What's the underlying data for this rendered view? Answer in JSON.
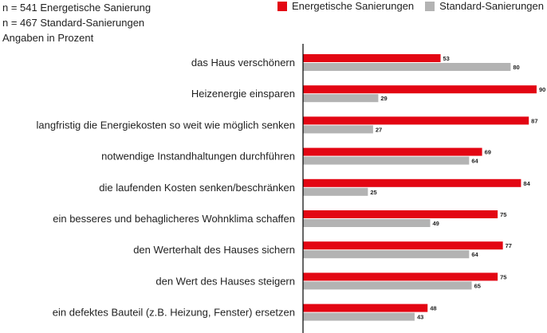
{
  "notes": {
    "line1": "n = 541 Energetische Sanierung",
    "line2": "n = 467 Standard-Sanierungen",
    "line3": "Angaben in Prozent"
  },
  "legend": [
    {
      "label": "Energetische Sanierungen",
      "color": "#e30613"
    },
    {
      "label": "Standard-Sanierungen",
      "color": "#b3b3b3"
    }
  ],
  "chart_data": {
    "type": "bar",
    "orientation": "horizontal",
    "categories": [
      "das Haus verschönern",
      "Heizenergie einsparen",
      "langfristig die Energiekosten so weit wie möglich senken",
      "notwendige Instandhaltungen durchführen",
      "die laufenden Kosten senken/beschränken",
      "ein besseres und behaglicheres Wohnklima schaffen",
      "den Werterhalt des Hauses sichern",
      "den Wert des Hauses steigern",
      "ein defektes Bauteil (z.B. Heizung, Fenster) ersetzen"
    ],
    "series": [
      {
        "name": "Energetische Sanierungen",
        "color": "#e30613",
        "values": [
          53,
          90,
          87,
          69,
          84,
          75,
          77,
          75,
          48
        ]
      },
      {
        "name": "Standard-Sanierungen",
        "color": "#b3b3b3",
        "values": [
          80,
          29,
          27,
          64,
          25,
          49,
          64,
          65,
          43
        ]
      }
    ],
    "xlim": [
      0,
      100
    ],
    "grid": false,
    "legend_position": "top-right"
  }
}
